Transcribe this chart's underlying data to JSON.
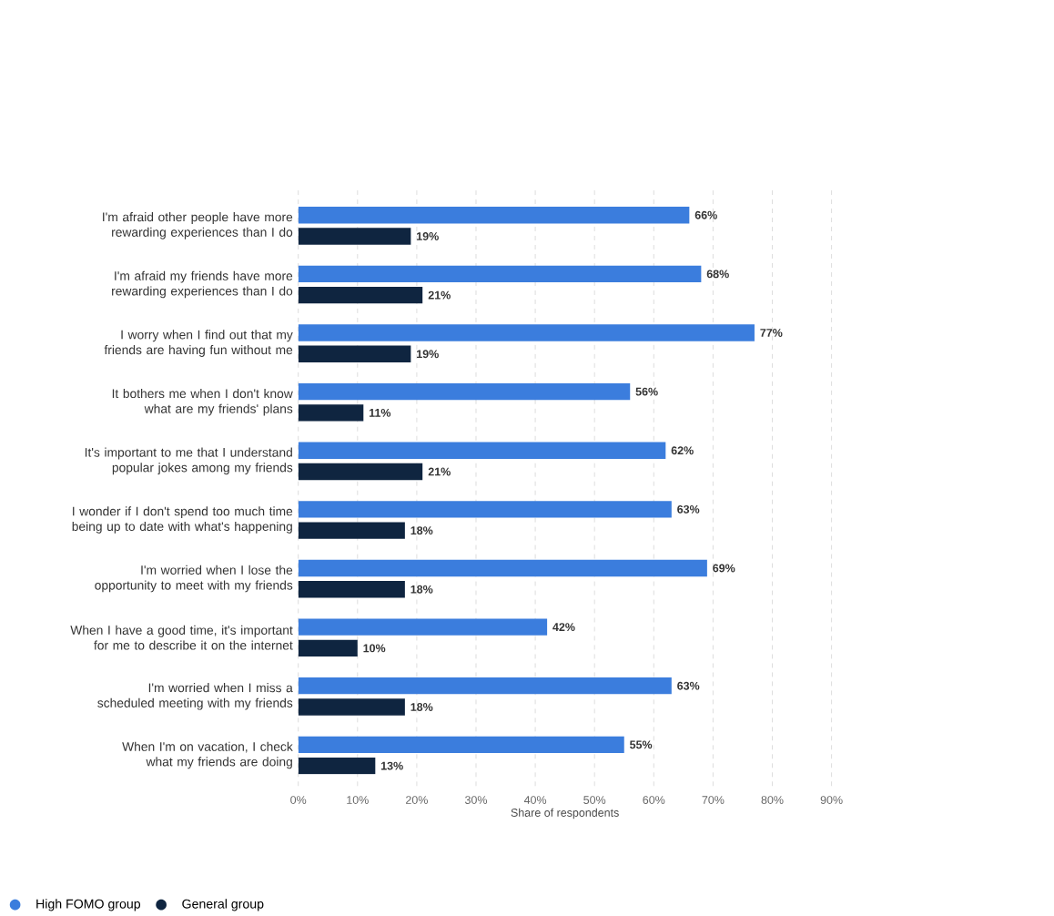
{
  "chart_data": {
    "type": "bar",
    "orientation": "horizontal",
    "xlabel": "Share of respondents",
    "categories": [
      "I'm afraid other people have more rewarding experiences than I do",
      "I'm afraid my friends have more rewarding experiences than I do",
      "I worry when I find out that my friends are having fun without me",
      "It bothers me when I don't know what are my friends' plans",
      "It's important to me that I understand popular jokes among my friends",
      "I wonder if I don't spend too much time being up to date with what's happening",
      "I'm worried when I lose the opportunity to meet with my friends",
      "When I have a good time, it's important for me to describe it on the internet",
      "I'm worried when I miss a scheduled meeting with my friends",
      "When I'm on vacation, I check what my friends are doing"
    ],
    "series": [
      {
        "name": "High FOMO group",
        "color": "#3b7ddd",
        "values": [
          66,
          68,
          77,
          56,
          62,
          63,
          69,
          42,
          63,
          55
        ],
        "value_labels": [
          "66%",
          "68%",
          "77%",
          "56%",
          "62%",
          "63%",
          "69%",
          "42%",
          "63%",
          "55%"
        ]
      },
      {
        "name": "General group",
        "color": "#0f2540",
        "values": [
          19,
          21,
          19,
          11,
          21,
          18,
          18,
          10,
          18,
          13
        ],
        "value_labels": [
          "19%",
          "21%",
          "19%",
          "11%",
          "21%",
          "18%",
          "18%",
          "10%",
          "18%",
          "13%"
        ]
      }
    ],
    "xlim": [
      0,
      90
    ],
    "xticks": [
      {
        "value": 0,
        "label": "0%"
      },
      {
        "value": 10,
        "label": "10%"
      },
      {
        "value": 20,
        "label": "20%"
      },
      {
        "value": 30,
        "label": "30%"
      },
      {
        "value": 40,
        "label": "40%"
      },
      {
        "value": 50,
        "label": "50%"
      },
      {
        "value": 60,
        "label": "60%"
      },
      {
        "value": 70,
        "label": "70%"
      },
      {
        "value": 80,
        "label": "80%"
      },
      {
        "value": 90,
        "label": "90%"
      }
    ],
    "grid": "x",
    "legend": "bottom left"
  }
}
